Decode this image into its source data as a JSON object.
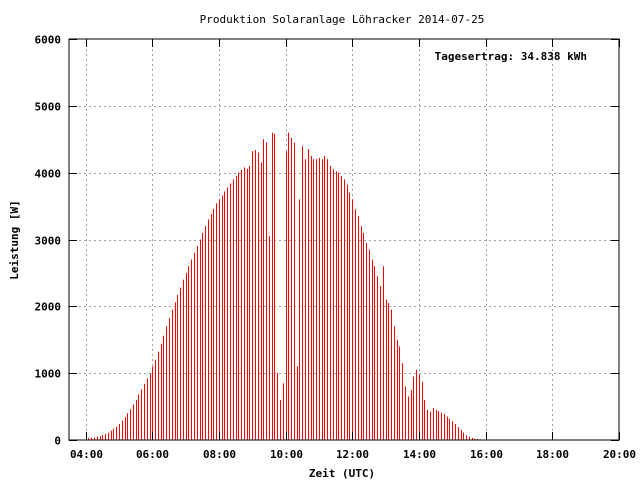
{
  "chart_data": {
    "type": "bar",
    "title": "Produktion Solaranlage Löhracker 2014-07-25",
    "xlabel": "Zeit (UTC)",
    "ylabel": "Leistung [W]",
    "annotation": "Tagesertrag: 34.838 kWh",
    "xlim": [
      3.5,
      20.0
    ],
    "ylim": [
      0,
      6000
    ],
    "x_ticks": [
      {
        "value": 4,
        "label": "04:00"
      },
      {
        "value": 6,
        "label": "06:00"
      },
      {
        "value": 8,
        "label": "08:00"
      },
      {
        "value": 10,
        "label": "10:00"
      },
      {
        "value": 12,
        "label": "12:00"
      },
      {
        "value": 14,
        "label": "14:00"
      },
      {
        "value": 16,
        "label": "16:00"
      },
      {
        "value": 18,
        "label": "18:00"
      },
      {
        "value": 20,
        "label": "20:00"
      }
    ],
    "y_ticks": [
      {
        "value": 0,
        "label": "0"
      },
      {
        "value": 1000,
        "label": "1000"
      },
      {
        "value": 2000,
        "label": "2000"
      },
      {
        "value": 3000,
        "label": "3000"
      },
      {
        "value": 4000,
        "label": "4000"
      },
      {
        "value": 5000,
        "label": "5000"
      },
      {
        "value": 6000,
        "label": "6000"
      }
    ],
    "grid": true,
    "bar_color": "#ff0000",
    "x_start": 4.0,
    "x_step": 0.0833,
    "values": [
      20,
      30,
      35,
      40,
      50,
      60,
      75,
      90,
      110,
      140,
      170,
      200,
      240,
      290,
      340,
      400,
      460,
      530,
      600,
      680,
      760,
      840,
      920,
      1000,
      1100,
      1200,
      1320,
      1440,
      1560,
      1700,
      1820,
      1950,
      2060,
      2170,
      2280,
      2400,
      2500,
      2600,
      2700,
      2800,
      2900,
      3000,
      3100,
      3200,
      3300,
      3380,
      3460,
      3540,
      3600,
      3660,
      3720,
      3780,
      3840,
      3900,
      3950,
      4000,
      4040,
      4080,
      4060,
      4100,
      4320,
      4340,
      4300,
      4150,
      4500,
      4450,
      3050,
      4600,
      4580,
      1000,
      600,
      850,
      4320,
      4600,
      4520,
      4450,
      1100,
      3600,
      4400,
      4200,
      4350,
      4250,
      4200,
      4200,
      4220,
      4200,
      4250,
      4200,
      4100,
      4050,
      4020,
      4000,
      3950,
      3900,
      3820,
      3700,
      3600,
      3450,
      3350,
      3200,
      3100,
      2950,
      2850,
      2700,
      2600,
      2450,
      2300,
      2600,
      2100,
      2050,
      1950,
      1700,
      1500,
      1400,
      1150,
      800,
      650,
      750,
      950,
      1050,
      980,
      870,
      600,
      450,
      420,
      480,
      450,
      430,
      410,
      390,
      350,
      320,
      280,
      240,
      190,
      150,
      110,
      70,
      50,
      30,
      20,
      15,
      10
    ]
  }
}
